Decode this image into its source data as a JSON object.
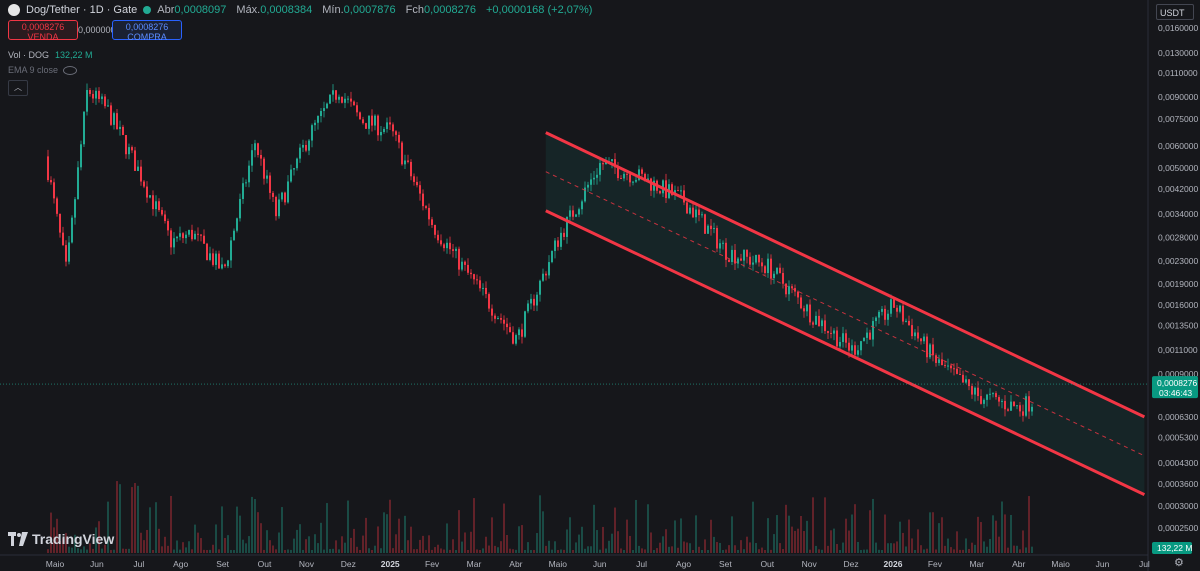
{
  "header": {
    "symbol": "Dog/Tether · 1D · Gate",
    "open_label": "Abr",
    "open_value": "0,0008097",
    "high_label": "Máx.",
    "high_value": "0,0008384",
    "low_label": "Mín.",
    "low_value": "0,0007876",
    "close_label": "Fch",
    "close_value": "0,0008276",
    "change_value": "+0,0000168 (+2,07%)"
  },
  "trade": {
    "sell_price": "0,0008276",
    "sell_label": "VENDA",
    "spread": "0,0000000",
    "buy_price": "0,0008276",
    "buy_label": "COMPRA"
  },
  "indicators": {
    "vol_label": "Vol · DOG",
    "vol_value": "132,22 M",
    "ema_label": "EMA 9 close"
  },
  "currency": "USDT",
  "watermark": "TradingView",
  "colors": {
    "up": "#22ab94",
    "down": "#f23645",
    "channel": "#f23645",
    "price_tag": "#089981",
    "background": "#16171b"
  },
  "chart_data": {
    "type": "candlestick",
    "title": "Dog/Tether · 1D · Gate",
    "y_scale": "log",
    "y_ticks": [
      "0,0160000",
      "0,0130000",
      "0,0110000",
      "0,0090000",
      "0,0075000",
      "0,0060000",
      "0,0050000",
      "0,0042000",
      "0,0034000",
      "0,0028000",
      "0,0023000",
      "0,0019000",
      "0,0016000",
      "0,0013500",
      "0,0011000",
      "0,0009000",
      "0,0006300",
      "0,0005300",
      "0,0004300",
      "0,0003600",
      "0,0003000",
      "0,0002500"
    ],
    "x_ticks": [
      "Maio",
      "Jun",
      "Jul",
      "Ago",
      "Set",
      "Out",
      "Nov",
      "Dez",
      "2025",
      "Fev",
      "Mar",
      "Abr",
      "Maio",
      "Jun",
      "Jul",
      "Ago",
      "Set",
      "Out",
      "Nov",
      "Dez",
      "2026",
      "Fev",
      "Mar",
      "Abr",
      "Maio",
      "Jun",
      "Jul"
    ],
    "bold_x_ticks": [
      "2025",
      "2026"
    ],
    "current_price": "0,0008276",
    "countdown": "03:46:43",
    "current_volume": "132,22 M",
    "price_path": [
      {
        "x": "Maio",
        "close": 0.0055
      },
      {
        "x": "Maio",
        "close": 0.0021
      },
      {
        "x": "Jun",
        "close": 0.0096
      },
      {
        "x": "Jun",
        "close": 0.008
      },
      {
        "x": "Jul",
        "close": 0.0048
      },
      {
        "x": "Ago",
        "close": 0.0027
      },
      {
        "x": "Ago",
        "close": 0.0029
      },
      {
        "x": "Set",
        "close": 0.0021
      },
      {
        "x": "Out",
        "close": 0.0062
      },
      {
        "x": "Out",
        "close": 0.0034
      },
      {
        "x": "Nov",
        "close": 0.0064
      },
      {
        "x": "Dez",
        "close": 0.0096
      },
      {
        "x": "Dez",
        "close": 0.0075
      },
      {
        "x": "2025",
        "close": 0.0068
      },
      {
        "x": "Fev",
        "close": 0.0031
      },
      {
        "x": "Mar",
        "close": 0.0019
      },
      {
        "x": "Abr",
        "close": 0.0012
      },
      {
        "x": "Maio",
        "close": 0.0028
      },
      {
        "x": "Jun",
        "close": 0.0052
      },
      {
        "x": "Jul",
        "close": 0.0046
      },
      {
        "x": "Ago",
        "close": 0.0038
      },
      {
        "x": "Set",
        "close": 0.0025
      },
      {
        "x": "Out",
        "close": 0.0022
      },
      {
        "x": "Nov",
        "close": 0.0015
      },
      {
        "x": "Dez",
        "close": 0.0011
      },
      {
        "x": "2026",
        "close": 0.0016
      },
      {
        "x": "Fev",
        "close": 0.001
      },
      {
        "x": "Mar",
        "close": 0.00075
      },
      {
        "x": "Abr",
        "close": 0.00068
      },
      {
        "x": "Maio",
        "close": 0.0008276
      }
    ],
    "channel": {
      "upper_start": 0.0067,
      "upper_end": 0.00063,
      "lower_start": 0.0035,
      "lower_end": 0.00033,
      "start": "Maio",
      "end": "Jul"
    }
  }
}
